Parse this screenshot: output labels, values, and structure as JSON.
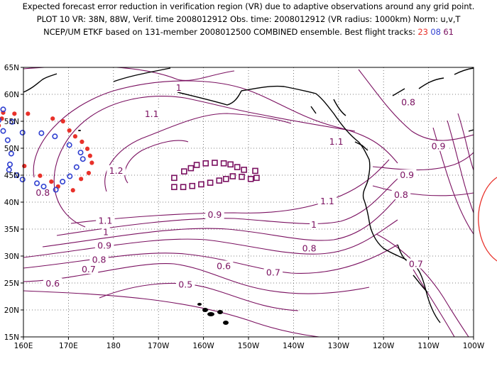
{
  "header": {
    "line1": "Expected forecast error reduction in verification region (VR) due to adaptive observations around any grid point.",
    "line2": "PLOT 10 VR: 38N, 88W, Verif. time 2008012912 Obs. time: 2008012912 (VR radius: 1000km) Norm: u,v,T",
    "line3_prefix": "NCEP/UM ETKF based on 131-member 2008012500 COMBINED ensemble.  Best flight tracks: ",
    "track_23": "23",
    "track_08": "08",
    "track_61": "61"
  },
  "map": {
    "lon_ticks": [
      "160E",
      "170E",
      "180",
      "170W",
      "160W",
      "150W",
      "140W",
      "130W",
      "120W",
      "110W",
      "100W"
    ],
    "lat_ticks": [
      "65N",
      "60N",
      "55N",
      "50N",
      "45N",
      "40N",
      "35N",
      "30N",
      "25N",
      "20N",
      "15N"
    ],
    "lon_range": [
      160,
      260
    ],
    "lat_range": [
      15,
      65
    ],
    "grid": "dotted",
    "contour_labels": [
      {
        "text": "1",
        "lon": 194.5,
        "lat": 61.2
      },
      {
        "text": "1.1",
        "lon": 188.5,
        "lat": 56.3
      },
      {
        "text": "1.1",
        "lon": 229.5,
        "lat": 51.2
      },
      {
        "text": "1.2",
        "lon": 180.6,
        "lat": 45.8
      },
      {
        "text": "1.1",
        "lon": 227.5,
        "lat": 40.1
      },
      {
        "text": "0.8",
        "lon": 245.5,
        "lat": 58.5
      },
      {
        "text": "0.9",
        "lon": 252.2,
        "lat": 50.3
      },
      {
        "text": "0.9",
        "lon": 245.2,
        "lat": 45.0
      },
      {
        "text": "0.8",
        "lon": 243.9,
        "lat": 41.3
      },
      {
        "text": "0.8",
        "lon": 164.3,
        "lat": 41.7
      },
      {
        "text": "1.1",
        "lon": 178.2,
        "lat": 36.5
      },
      {
        "text": "1",
        "lon": 178.3,
        "lat": 34.4
      },
      {
        "text": "0.9",
        "lon": 178.0,
        "lat": 31.9
      },
      {
        "text": "0.8",
        "lon": 176.8,
        "lat": 29.3
      },
      {
        "text": "0.7",
        "lon": 174.5,
        "lat": 27.5
      },
      {
        "text": "0.6",
        "lon": 166.5,
        "lat": 24.9
      },
      {
        "text": "0.9",
        "lon": 202.5,
        "lat": 37.6
      },
      {
        "text": "1",
        "lon": 224.5,
        "lat": 35.8
      },
      {
        "text": "0.6",
        "lon": 204.5,
        "lat": 28.1
      },
      {
        "text": "0.5",
        "lon": 196.0,
        "lat": 24.7
      },
      {
        "text": "0.8",
        "lon": 223.5,
        "lat": 31.4
      },
      {
        "text": "0.7",
        "lon": 215.5,
        "lat": 26.9
      },
      {
        "text": "0.7",
        "lon": 247.2,
        "lat": 28.5
      }
    ],
    "tracks": [
      {
        "id": "23",
        "color": "#e8312a",
        "marker": "dot",
        "points": [
          [
            171.5,
            52.2
          ],
          [
            170.2,
            53.3
          ],
          [
            168.8,
            55.0
          ],
          [
            166.5,
            55.5
          ],
          [
            161.0,
            56.4
          ],
          [
            158.0,
            56.4
          ],
          [
            155.5,
            56.6
          ],
          [
            155.2,
            55.5
          ],
          [
            154.5,
            54.2
          ],
          [
            153.7,
            53.2
          ],
          [
            160.2,
            46.7
          ],
          [
            163.7,
            44.9
          ],
          [
            166.2,
            43.8
          ],
          [
            167.7,
            42.9
          ],
          [
            171.0,
            42.2
          ],
          [
            172.8,
            44.3
          ],
          [
            174.5,
            45.4
          ],
          [
            175.2,
            47.3
          ],
          [
            174.8,
            48.6
          ],
          [
            174.2,
            49.9
          ],
          [
            173.0,
            51.2
          ]
        ]
      },
      {
        "id": "08",
        "color": "#2f3fd0",
        "marker": "ring",
        "points": [
          [
            167.0,
            52.2
          ],
          [
            164.0,
            52.8
          ],
          [
            159.8,
            52.9
          ],
          [
            157.5,
            54.9
          ],
          [
            155.5,
            57.2
          ],
          [
            153.0,
            58.4
          ],
          [
            154.5,
            55.2
          ],
          [
            155.5,
            53.2
          ],
          [
            156.5,
            51.5
          ],
          [
            157.3,
            49.0
          ],
          [
            157.0,
            47.0
          ],
          [
            156.8,
            46.0
          ],
          [
            158.5,
            45.0
          ],
          [
            159.8,
            44.2
          ],
          [
            163.0,
            43.5
          ],
          [
            164.5,
            42.9
          ],
          [
            167.2,
            42.3
          ],
          [
            168.7,
            43.8
          ],
          [
            170.3,
            44.8
          ],
          [
            171.8,
            46.5
          ],
          [
            173.2,
            48.0
          ],
          [
            172.7,
            49.2
          ],
          [
            170.2,
            50.6
          ]
        ]
      },
      {
        "id": "61",
        "color": "#7a1060",
        "marker": "square",
        "points": [
          [
            193.5,
            44.5
          ],
          [
            195.7,
            45.7
          ],
          [
            197.2,
            46.3
          ],
          [
            198.5,
            46.9
          ],
          [
            200.5,
            47.2
          ],
          [
            202.5,
            47.3
          ],
          [
            204.5,
            47.2
          ],
          [
            206.0,
            47.0
          ],
          [
            207.5,
            46.5
          ],
          [
            209.0,
            46.0
          ],
          [
            211.5,
            45.8
          ],
          [
            211.8,
            44.5
          ],
          [
            210.5,
            44.3
          ],
          [
            208.5,
            44.7
          ],
          [
            206.5,
            44.8
          ],
          [
            205.0,
            44.3
          ],
          [
            203.5,
            44.0
          ],
          [
            201.5,
            43.6
          ],
          [
            199.5,
            43.3
          ],
          [
            197.5,
            43.0
          ],
          [
            195.5,
            42.8
          ],
          [
            193.5,
            42.8
          ]
        ]
      }
    ],
    "colors": {
      "contour": "#7a1060",
      "coast": "#000000",
      "vr_circle": "#e8312a",
      "grid": "#555555"
    }
  }
}
